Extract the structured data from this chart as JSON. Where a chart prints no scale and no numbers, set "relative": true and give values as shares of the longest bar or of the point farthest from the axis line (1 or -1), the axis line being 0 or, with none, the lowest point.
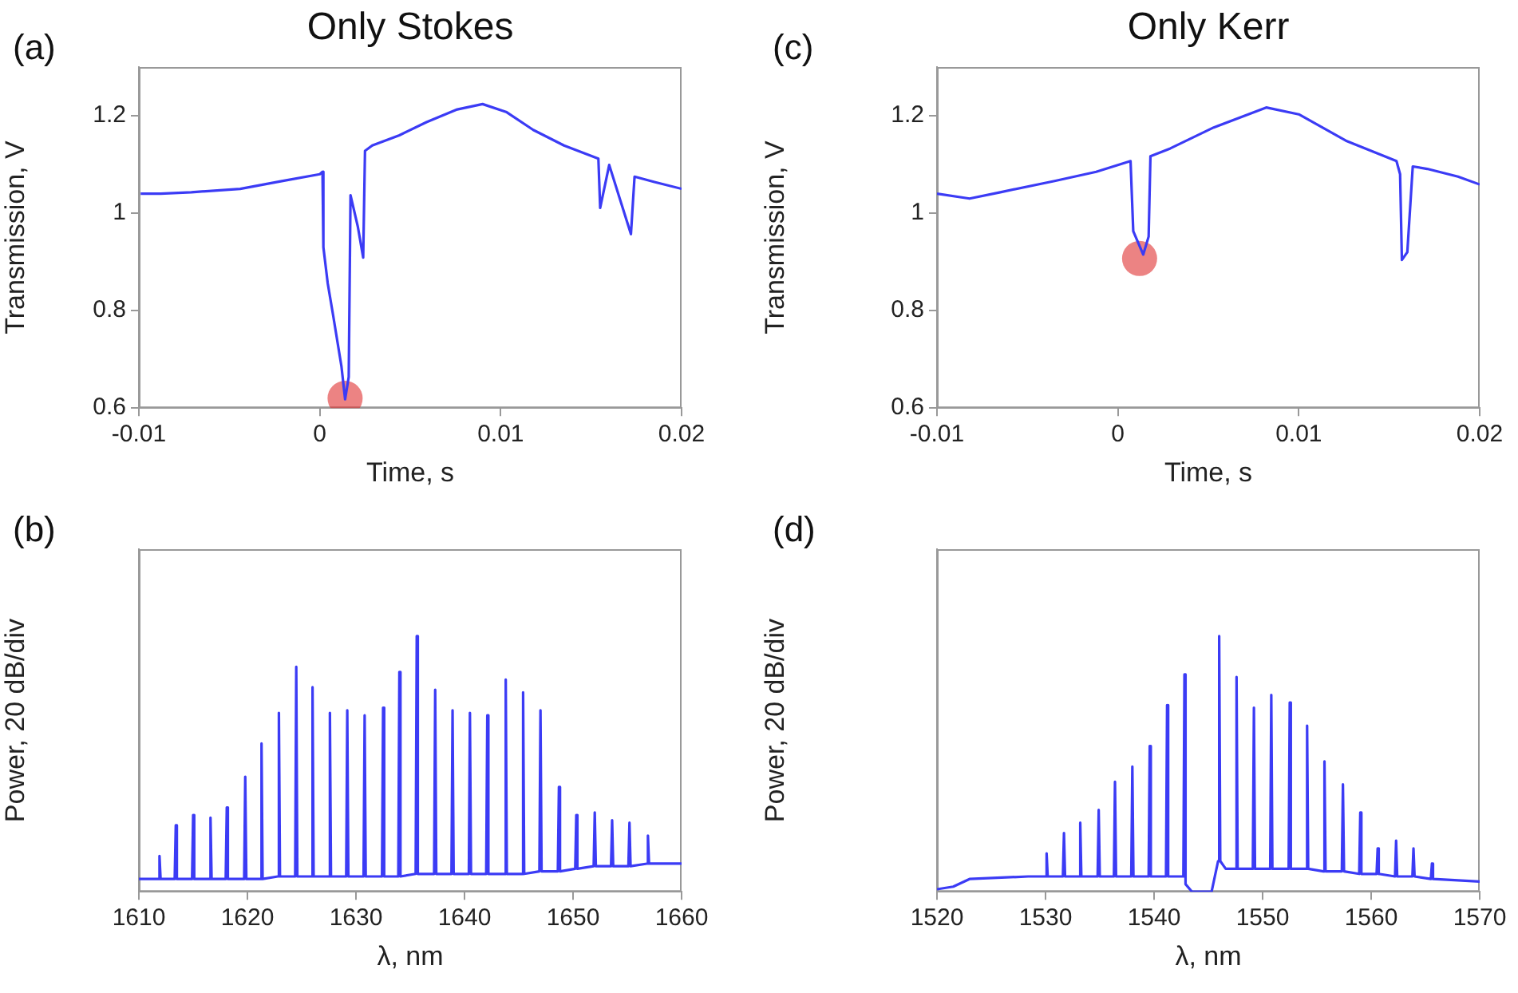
{
  "chart_data": [
    {
      "type": "line",
      "title": "Only Stokes",
      "annotations": [
        "(a)"
      ],
      "xlabel": "Time, s",
      "ylabel": "Transmission, V",
      "xlim": [
        -0.01,
        0.02
      ],
      "xticks": [
        -0.01,
        0,
        0.01,
        0.02
      ],
      "ylim": [
        0.6,
        1.3
      ],
      "yticks": [
        0.6,
        0.8,
        1,
        1.2
      ],
      "series": [
        {
          "color": "#3b3bf5",
          "x": [
            -0.0099,
            -0.0088,
            -0.0071,
            -0.0044,
            -0.0021,
            0,
            0.00015,
            0.0002,
            0.00044,
            0.00074,
            0.0012,
            0.0014,
            0.0016,
            0.0017,
            0.0021,
            0.0024,
            0.0025,
            0.0029,
            0.0044,
            0.0059,
            0.0076,
            0.009,
            0.0103,
            0.0118,
            0.0135,
            0.0154,
            0.0155,
            0.016,
            0.0172,
            0.0174,
            0.0185,
            0.02
          ],
          "values": [
            1.04,
            1.04,
            1.043,
            1.05,
            1.066,
            1.08,
            1.085,
            0.93,
            0.856,
            0.79,
            0.685,
            0.618,
            0.664,
            1.037,
            0.973,
            0.909,
            1.128,
            1.139,
            1.16,
            1.187,
            1.213,
            1.224,
            1.208,
            1.171,
            1.139,
            1.112,
            1.011,
            1.099,
            0.957,
            1.075,
            1.064,
            1.05
          ]
        },
        {
          "type": "scatter",
          "color": "#e03030",
          "marker": "circle",
          "x": [
            0.0014
          ],
          "values": [
            0.62
          ]
        }
      ]
    },
    {
      "type": "line",
      "title": "Only Kerr",
      "annotations": [
        "(c)"
      ],
      "xlabel": "Time, s",
      "ylabel": "Transmission, V",
      "xlim": [
        -0.01,
        0.02
      ],
      "xticks": [
        -0.01,
        0,
        0.01,
        0.02
      ],
      "ylim": [
        0.6,
        1.3
      ],
      "yticks": [
        0.6,
        0.8,
        1,
        1.2
      ],
      "series": [
        {
          "color": "#3b3bf5",
          "x": [
            -0.01,
            -0.0082,
            -0.0065,
            -0.0035,
            -0.0012,
            0.0007,
            0.00085,
            0.0014,
            0.0017,
            0.0018,
            0.0029,
            0.0053,
            0.0082,
            0.01,
            0.0126,
            0.0154,
            0.0156,
            0.0157,
            0.016,
            0.0163,
            0.0171,
            0.0188,
            0.02
          ],
          "values": [
            1.04,
            1.03,
            1.043,
            1.066,
            1.085,
            1.107,
            0.963,
            0.915,
            0.952,
            1.117,
            1.133,
            1.176,
            1.217,
            1.203,
            1.149,
            1.107,
            1.08,
            0.904,
            0.92,
            1.096,
            1.091,
            1.075,
            1.059
          ]
        },
        {
          "type": "scatter",
          "color": "#e03030",
          "marker": "circle",
          "x": [
            0.0012
          ],
          "values": [
            0.907
          ]
        }
      ]
    },
    {
      "type": "line",
      "relative": true,
      "annotations": [
        "(b)"
      ],
      "xlabel": "λ, nm",
      "ylabel": "Power, 20 dB/div",
      "xlim": [
        1610,
        1660
      ],
      "xticks": [
        1610,
        1620,
        1630,
        1640,
        1650,
        1660
      ],
      "series": [
        {
          "color": "#3b3bf5",
          "x": [
            1610,
            1611.8,
            1611.9,
            1612,
            1613.3,
            1613.4,
            1613.5,
            1614.9,
            1615,
            1615.1,
            1616.5,
            1616.6,
            1616.7,
            1618,
            1618.1,
            1618.2,
            1619.7,
            1619.8,
            1619.9,
            1621.2,
            1621.3,
            1621.4,
            1622.8,
            1622.9,
            1623,
            1624.4,
            1624.5,
            1624.6,
            1625.9,
            1626,
            1626.1,
            1627.5,
            1627.6,
            1627.7,
            1629.1,
            1629.2,
            1629.3,
            1630.7,
            1630.8,
            1630.9,
            1632.4,
            1632.5,
            1632.6,
            1633.9,
            1634,
            1634.1,
            1635.5,
            1635.6,
            1635.7,
            1637.2,
            1637.3,
            1637.4,
            1638.8,
            1638.9,
            1639,
            1640.4,
            1640.5,
            1640.6,
            1642,
            1642.1,
            1642.2,
            1643.7,
            1643.8,
            1643.9,
            1645.3,
            1645.4,
            1645.5,
            1646.9,
            1647,
            1647.1,
            1648.6,
            1648.7,
            1648.8,
            1650.2,
            1650.3,
            1650.4,
            1651.9,
            1652,
            1652.1,
            1653.5,
            1653.6,
            1653.7,
            1655.1,
            1655.2,
            1655.3,
            1656.8,
            1656.9,
            1657,
            1660
          ],
          "values": [
            0.05,
            0.05,
            0.14,
            0.05,
            0.05,
            0.26,
            0.05,
            0.05,
            0.3,
            0.05,
            0.05,
            0.29,
            0.05,
            0.05,
            0.33,
            0.05,
            0.05,
            0.45,
            0.05,
            0.05,
            0.58,
            0.05,
            0.06,
            0.7,
            0.06,
            0.06,
            0.88,
            0.06,
            0.06,
            0.8,
            0.06,
            0.06,
            0.7,
            0.06,
            0.06,
            0.71,
            0.06,
            0.06,
            0.69,
            0.06,
            0.06,
            0.72,
            0.06,
            0.06,
            0.86,
            0.06,
            0.07,
            1,
            0.07,
            0.07,
            0.79,
            0.07,
            0.07,
            0.71,
            0.07,
            0.07,
            0.7,
            0.07,
            0.07,
            0.69,
            0.07,
            0.07,
            0.83,
            0.07,
            0.07,
            0.78,
            0.07,
            0.08,
            0.71,
            0.08,
            0.08,
            0.41,
            0.08,
            0.09,
            0.3,
            0.09,
            0.1,
            0.31,
            0.1,
            0.1,
            0.28,
            0.1,
            0.1,
            0.27,
            0.1,
            0.11,
            0.22,
            0.11,
            0.11
          ]
        }
      ]
    },
    {
      "type": "line",
      "relative": true,
      "annotations": [
        "(d)"
      ],
      "xlabel": "λ, nm",
      "ylabel": "Power, 20 dB/div",
      "xlim": [
        1520,
        1570
      ],
      "xticks": [
        1520,
        1530,
        1540,
        1550,
        1560,
        1570
      ],
      "series": [
        {
          "color": "#3b3bf5",
          "x": [
            1520,
            1521.5,
            1523,
            1528.4,
            1528.5,
            1528.6,
            1530,
            1530.1,
            1530.2,
            1531.6,
            1531.7,
            1531.8,
            1533.1,
            1533.2,
            1533.3,
            1534.8,
            1534.9,
            1535,
            1536.3,
            1536.4,
            1536.5,
            1537.9,
            1538,
            1538.1,
            1539.5,
            1539.6,
            1539.7,
            1541.1,
            1541.2,
            1541.3,
            1542.7,
            1542.8,
            1542.9,
            1543.5,
            1545.3,
            1545.9,
            1546,
            1546.1,
            1546.6,
            1547.5,
            1547.6,
            1547.7,
            1549.1,
            1549.2,
            1549.3,
            1550.7,
            1550.8,
            1550.9,
            1552.4,
            1552.5,
            1552.6,
            1554,
            1554.1,
            1554.2,
            1555.6,
            1555.7,
            1555.8,
            1557.3,
            1557.4,
            1557.5,
            1558.9,
            1559,
            1559.1,
            1560.5,
            1560.6,
            1560.7,
            1562.2,
            1562.3,
            1562.4,
            1563.8,
            1563.9,
            1564,
            1565.5,
            1565.6,
            1565.7,
            1570
          ],
          "values": [
            0.01,
            0.02,
            0.05,
            0.06,
            0.06,
            0.06,
            0.06,
            0.15,
            0.06,
            0.06,
            0.23,
            0.06,
            0.06,
            0.27,
            0.06,
            0.06,
            0.32,
            0.06,
            0.06,
            0.43,
            0.06,
            0.06,
            0.49,
            0.06,
            0.06,
            0.57,
            0.06,
            0.06,
            0.73,
            0.06,
            0.06,
            0.85,
            0.03,
            0,
            0,
            0.12,
            1,
            0.12,
            0.09,
            0.09,
            0.84,
            0.09,
            0.09,
            0.72,
            0.09,
            0.09,
            0.77,
            0.09,
            0.09,
            0.74,
            0.09,
            0.09,
            0.65,
            0.09,
            0.08,
            0.51,
            0.08,
            0.08,
            0.42,
            0.08,
            0.07,
            0.31,
            0.07,
            0.07,
            0.17,
            0.07,
            0.06,
            0.2,
            0.06,
            0.06,
            0.17,
            0.06,
            0.05,
            0.11,
            0.05,
            0.04
          ]
        }
      ]
    }
  ]
}
